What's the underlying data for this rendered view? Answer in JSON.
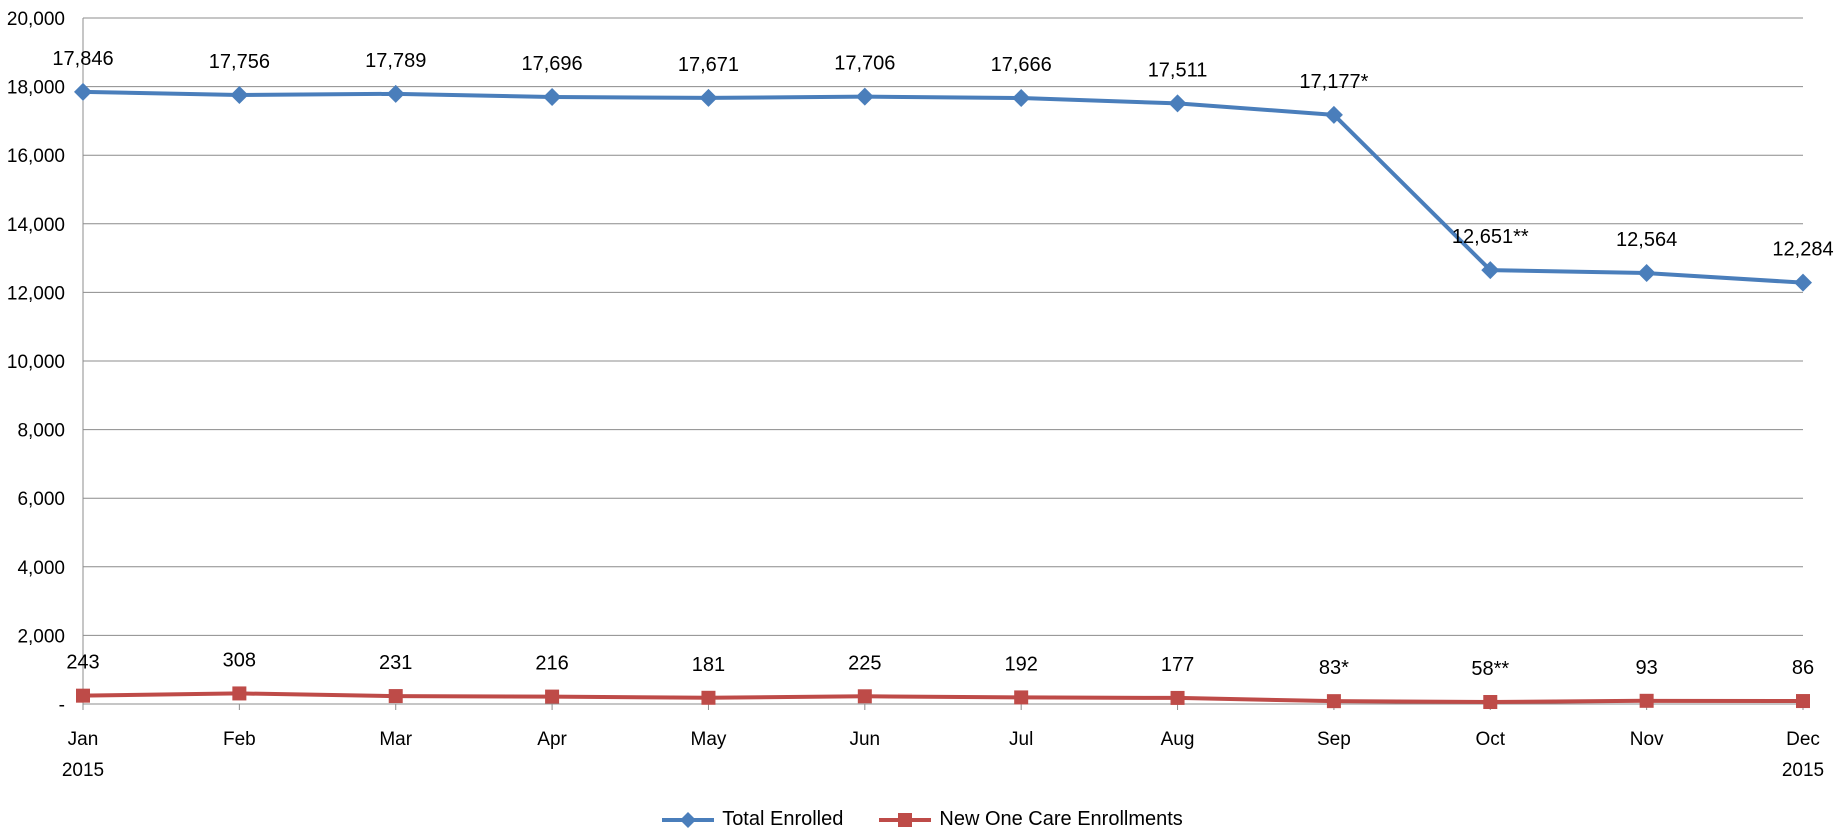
{
  "chart_data": {
    "type": "line",
    "title": "",
    "xlabel": "",
    "ylabel": "",
    "categories": [
      "Jan",
      "Feb",
      "Mar",
      "Apr",
      "May",
      "Jun",
      "Jul",
      "Aug",
      "Sep",
      "Oct",
      "Nov",
      "Dec"
    ],
    "category_sublabels": {
      "0": "2015",
      "11": "2015"
    },
    "ylim": [
      0,
      20000
    ],
    "yticks": [
      0,
      2000,
      4000,
      6000,
      8000,
      10000,
      12000,
      14000,
      16000,
      18000,
      20000
    ],
    "ytick_labels": [
      "-",
      "2,000",
      "4,000",
      "6,000",
      "8,000",
      "10,000",
      "12,000",
      "14,000",
      "16,000",
      "18,000",
      "20,000"
    ],
    "grid": true,
    "legend_position": "bottom",
    "series": [
      {
        "name": "Total Enrolled",
        "color": "#4a7ebb",
        "marker": "diamond",
        "values": [
          17846,
          17756,
          17789,
          17696,
          17671,
          17706,
          17666,
          17511,
          17177,
          12651,
          12564,
          12284
        ],
        "labels": [
          "17,846",
          "17,756",
          "17,789",
          "17,696",
          "17,671",
          "17,706",
          "17,666",
          "17,511",
          "17,177*",
          "12,651**",
          "12,564",
          "12,284"
        ]
      },
      {
        "name": "New One Care Enrollments",
        "color": "#be4b48",
        "marker": "square",
        "values": [
          243,
          308,
          231,
          216,
          181,
          225,
          192,
          177,
          83,
          58,
          93,
          86
        ],
        "labels": [
          "243",
          "308",
          "231",
          "216",
          "181",
          "225",
          "192",
          "177",
          "83*",
          "58**",
          "93",
          "86"
        ]
      }
    ]
  }
}
